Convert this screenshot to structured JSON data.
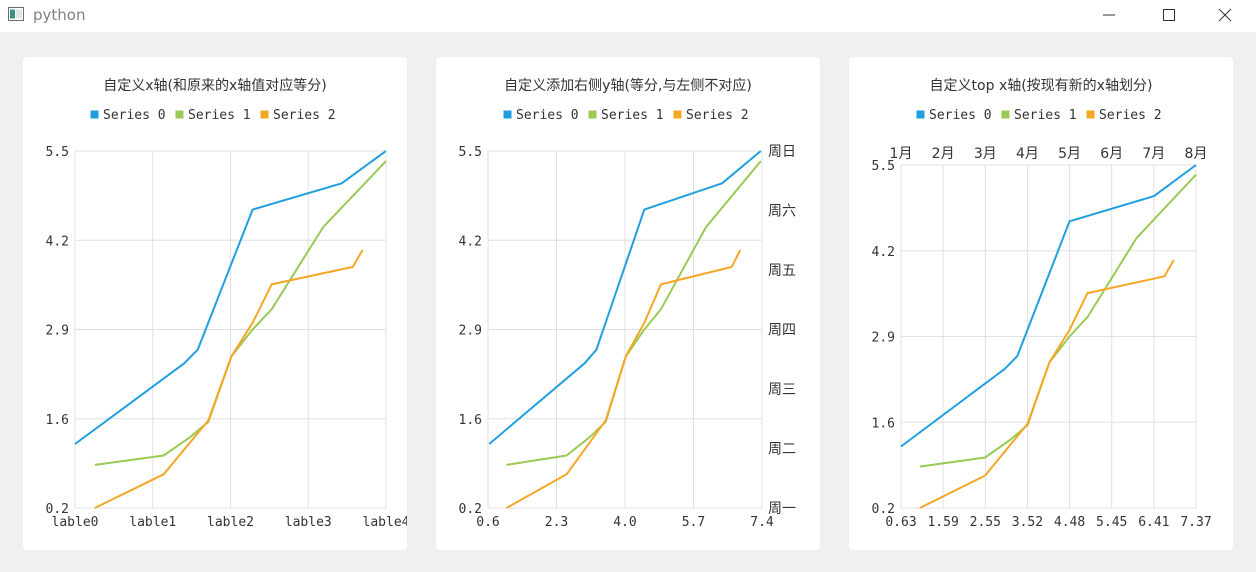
{
  "window": {
    "title": "python",
    "controls": [
      "minimize",
      "maximize",
      "close"
    ]
  },
  "colors": {
    "series": [
      "#209fdf",
      "#99ca53",
      "#f6a625"
    ],
    "grid": "#e0e0e0",
    "axis": "#d0d0d0"
  },
  "legend": [
    "Series 0",
    "Series 1",
    "Series 2"
  ],
  "chart_data": [
    {
      "type": "line",
      "title": "自定义x轴(和原来的x轴值对应等分)",
      "legend_position": "top",
      "grid": true,
      "xlim": [
        0.63,
        7.37
      ],
      "ylim": [
        0.2,
        5.5
      ],
      "x_tick_labels": [
        "lable0",
        "lable1",
        "lable2",
        "lable3",
        "lable4"
      ],
      "y_tick_labels": [
        "0.2",
        "1.6",
        "2.9",
        "4.2",
        "5.5"
      ],
      "series": [
        {
          "name": "Series 0",
          "x": [
            0.63,
            3.0,
            3.29,
            4.48,
            6.41,
            7.37
          ],
          "y": [
            1.15,
            2.35,
            2.55,
            4.63,
            5.02,
            5.5
          ]
        },
        {
          "name": "Series 1",
          "x": [
            1.06,
            2.55,
            3.12,
            3.52,
            4.02,
            4.48,
            4.89,
            6.01,
            7.37
          ],
          "y": [
            0.84,
            0.98,
            1.25,
            1.48,
            2.45,
            2.85,
            3.15,
            4.37,
            5.35
          ]
        },
        {
          "name": "Series 2",
          "x": [
            1.06,
            2.55,
            3.52,
            4.02,
            4.48,
            4.89,
            6.65,
            6.86
          ],
          "y": [
            0.2,
            0.7,
            1.5,
            2.45,
            2.95,
            3.52,
            3.78,
            4.03
          ]
        }
      ]
    },
    {
      "type": "line",
      "title": "自定义添加右侧y轴(等分,与左侧不对应)",
      "legend_position": "top",
      "grid": true,
      "xlim": [
        0.6,
        7.4
      ],
      "ylim": [
        0.2,
        5.5
      ],
      "x_tick_labels": [
        "0.6",
        "2.3",
        "4.0",
        "5.7",
        "7.4"
      ],
      "y_tick_labels": [
        "0.2",
        "1.6",
        "2.9",
        "4.2",
        "5.5"
      ],
      "y2_tick_labels": [
        "周一",
        "周二",
        "周三",
        "周四",
        "周五",
        "周六",
        "周日"
      ],
      "series": [
        {
          "name": "Series 0",
          "x": [
            0.63,
            3.0,
            3.29,
            4.48,
            6.41,
            7.37
          ],
          "y": [
            1.15,
            2.35,
            2.55,
            4.63,
            5.02,
            5.5
          ]
        },
        {
          "name": "Series 1",
          "x": [
            1.06,
            2.55,
            3.12,
            3.52,
            4.02,
            4.48,
            4.89,
            6.01,
            7.37
          ],
          "y": [
            0.84,
            0.98,
            1.25,
            1.48,
            2.45,
            2.85,
            3.15,
            4.37,
            5.35
          ]
        },
        {
          "name": "Series 2",
          "x": [
            1.06,
            2.55,
            3.52,
            4.02,
            4.48,
            4.89,
            6.65,
            6.86
          ],
          "y": [
            0.2,
            0.7,
            1.5,
            2.45,
            2.95,
            3.52,
            3.78,
            4.03
          ]
        }
      ]
    },
    {
      "type": "line",
      "title": "自定义top x轴(按现有新的x轴划分)",
      "legend_position": "top",
      "grid": true,
      "xlim": [
        0.63,
        7.37
      ],
      "ylim": [
        0.2,
        5.5
      ],
      "x_tick_labels": [
        "0.63",
        "1.59",
        "2.55",
        "3.52",
        "4.48",
        "5.45",
        "6.41",
        "7.37"
      ],
      "x2_tick_labels": [
        "1月",
        "2月",
        "3月",
        "4月",
        "5月",
        "6月",
        "7月",
        "8月"
      ],
      "y_tick_labels": [
        "0.2",
        "1.6",
        "2.9",
        "4.2",
        "5.5"
      ],
      "series": [
        {
          "name": "Series 0",
          "x": [
            0.63,
            3.0,
            3.29,
            4.48,
            6.41,
            7.37
          ],
          "y": [
            1.15,
            2.35,
            2.55,
            4.63,
            5.02,
            5.5
          ]
        },
        {
          "name": "Series 1",
          "x": [
            1.06,
            2.55,
            3.12,
            3.52,
            4.02,
            4.48,
            4.89,
            6.01,
            7.37
          ],
          "y": [
            0.84,
            0.98,
            1.25,
            1.48,
            2.45,
            2.85,
            3.15,
            4.37,
            5.35
          ]
        },
        {
          "name": "Series 2",
          "x": [
            1.06,
            2.55,
            3.52,
            4.02,
            4.48,
            4.89,
            6.65,
            6.86
          ],
          "y": [
            0.2,
            0.7,
            1.5,
            2.45,
            2.95,
            3.52,
            3.78,
            4.03
          ]
        }
      ]
    }
  ]
}
